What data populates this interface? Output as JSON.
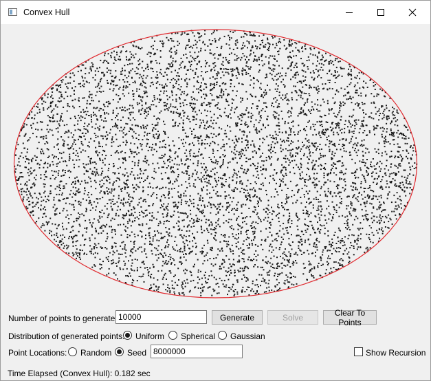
{
  "window": {
    "title": "Convex Hull",
    "controls": {
      "minimize": "minimize-icon",
      "maximize": "maximize-icon",
      "close": "close-icon"
    }
  },
  "canvas": {
    "hull_color": "#e0282d",
    "point_color": "#1a1a1a",
    "point_count": 10000,
    "distribution": "uniform-ellipse"
  },
  "controls": {
    "num_points_label": "Number of points to generate:",
    "num_points_value": "10000",
    "generate_label": "Generate",
    "solve_label": "Solve",
    "clear_label": "Clear To Points",
    "distribution_label": "Distribution of generated points:",
    "distribution_options": [
      {
        "label": "Uniform",
        "checked": true
      },
      {
        "label": "Spherical",
        "checked": false
      },
      {
        "label": "Gaussian",
        "checked": false
      }
    ],
    "locations_label": "Point Locations:",
    "location_options": [
      {
        "label": "Random",
        "checked": false
      },
      {
        "label": "Seed",
        "checked": true
      }
    ],
    "seed_value": "8000000",
    "show_recursion_label": "Show Recursion",
    "show_recursion_checked": false
  },
  "status": {
    "text": "Time Elapsed (Convex Hull): 0.182 sec"
  }
}
